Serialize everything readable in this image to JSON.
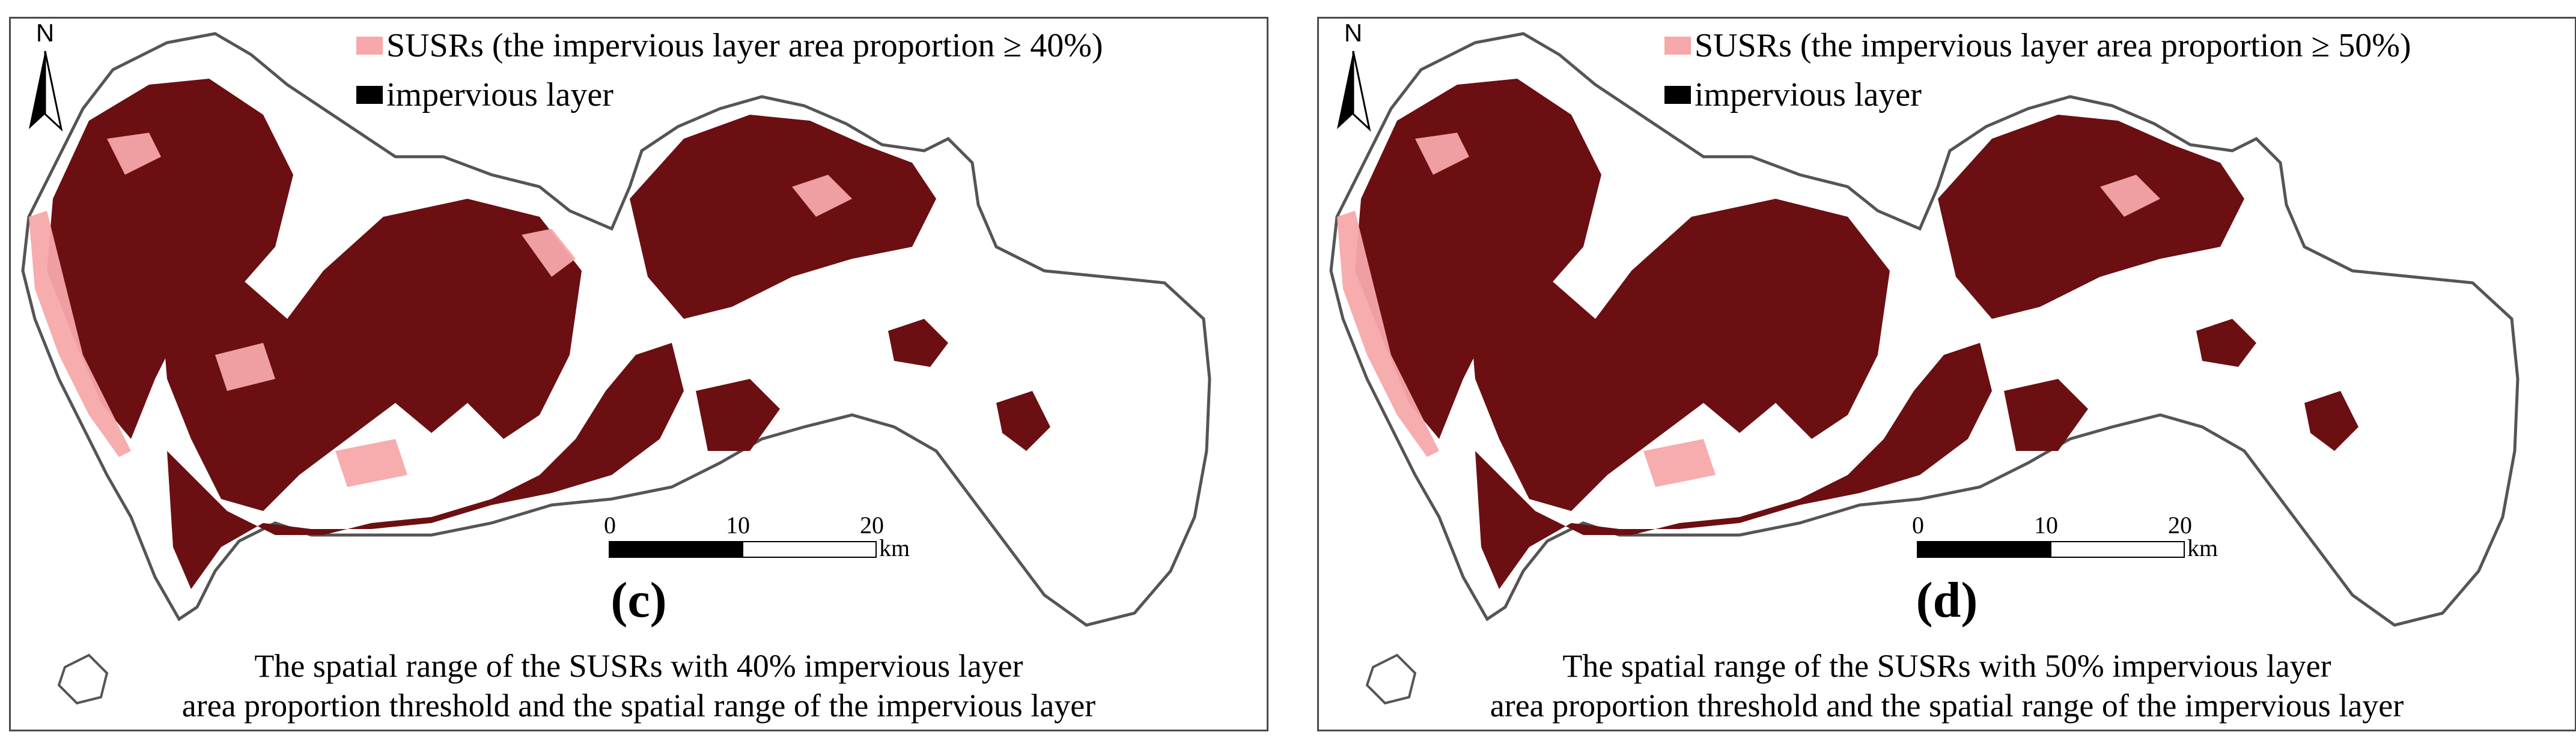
{
  "colors": {
    "susr": "#f7a8aa",
    "impervious": "#000000",
    "overlap": "#6b0f12",
    "boundary": "#555555"
  },
  "north_label": "N",
  "scale": {
    "ticks": [
      "0",
      "10",
      "20"
    ],
    "unit": "km"
  },
  "panels": [
    {
      "letter": "(c)",
      "legend": {
        "susr_label": "SUSRs (the impervious layer area proportion ≥ 40%)",
        "impervious_label": "impervious layer"
      },
      "caption_line1": "The spatial range of the SUSRs with 40% impervious layer",
      "caption_line2": "area proportion threshold and the spatial range of the impervious layer",
      "threshold_percent": 40
    },
    {
      "letter": "(d)",
      "legend": {
        "susr_label": "SUSRs (the impervious layer area proportion ≥ 50%)",
        "impervious_label": "impervious layer"
      },
      "caption_line1": "The spatial range of the SUSRs with 50% impervious layer",
      "caption_line2": "area proportion threshold and the spatial range of the impervious layer",
      "threshold_percent": 50
    }
  ]
}
